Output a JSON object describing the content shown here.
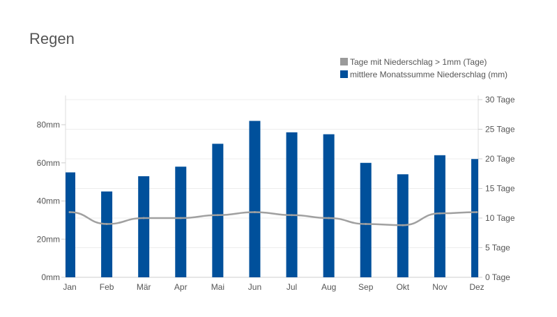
{
  "chart_data": {
    "type": "bar",
    "title": "Regen",
    "categories": [
      "Jan",
      "Feb",
      "Mär",
      "Apr",
      "Mai",
      "Jun",
      "Jul",
      "Aug",
      "Sep",
      "Okt",
      "Nov",
      "Dez"
    ],
    "series": [
      {
        "name": "mittlere Monatssumme Niederschlag (mm)",
        "type": "bar",
        "axis": "left",
        "color": "#00509b",
        "values": [
          55,
          45,
          53,
          58,
          70,
          82,
          76,
          75,
          60,
          54,
          64,
          62
        ]
      },
      {
        "name": "Tage mit Niederschlag > 1mm (Tage)",
        "type": "line",
        "axis": "right",
        "color": "#a0a0a0",
        "values": [
          11,
          9,
          10,
          10,
          10.5,
          11,
          10.5,
          10,
          9,
          8.8,
          10.8,
          11
        ]
      }
    ],
    "left_axis": {
      "ylim": [
        0,
        95
      ],
      "ticks": [
        0,
        20,
        40,
        60,
        80
      ],
      "tick_labels": [
        "0mm",
        "20mm",
        "40mm",
        "60mm",
        "80mm"
      ]
    },
    "right_axis": {
      "ylim": [
        0,
        30
      ],
      "ticks": [
        0,
        5,
        10,
        15,
        20,
        25,
        30
      ],
      "tick_labels": [
        "0 Tage",
        "5 Tage",
        "10 Tage",
        "15 Tage",
        "20 Tage",
        "25 Tage",
        "30 Tage"
      ]
    },
    "grid": true,
    "legend_position": "top-right"
  }
}
